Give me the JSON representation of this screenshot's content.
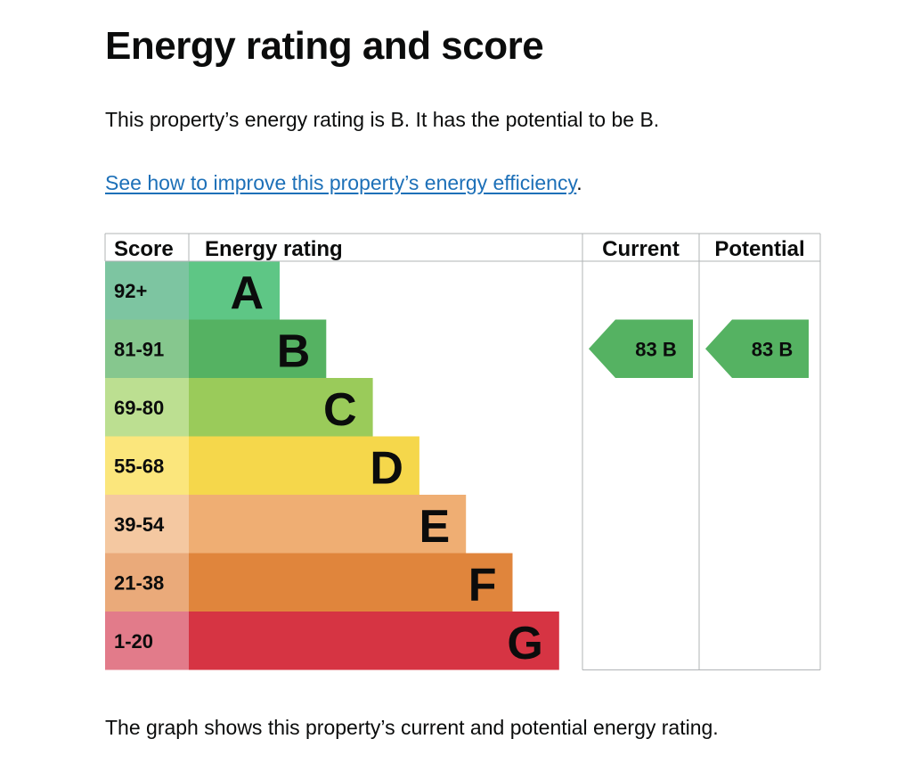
{
  "page": {
    "title": "Energy rating and score",
    "intro": "This property’s energy rating is B. It has the potential to be B.",
    "link_text": "See how to improve this property’s energy efficiency",
    "link_suffix": ".",
    "footer": "The graph shows this property’s current and potential energy rating."
  },
  "chart_data": {
    "type": "bar",
    "columns": [
      "Score",
      "Energy rating",
      "Current",
      "Potential"
    ],
    "bands": [
      {
        "letter": "A",
        "score_range": "92+",
        "color": "#5ec685",
        "score_color": "#7dc5a1"
      },
      {
        "letter": "B",
        "score_range": "81-91",
        "color": "#55b262",
        "score_color": "#86c78e"
      },
      {
        "letter": "C",
        "score_range": "69-80",
        "color": "#9acb5a",
        "score_color": "#bcdf91"
      },
      {
        "letter": "D",
        "score_range": "55-68",
        "color": "#f5d74b",
        "score_color": "#fbe67c"
      },
      {
        "letter": "E",
        "score_range": "39-54",
        "color": "#efae73",
        "score_color": "#f4c8a1"
      },
      {
        "letter": "F",
        "score_range": "21-38",
        "color": "#e0853c",
        "score_color": "#eaaa7a"
      },
      {
        "letter": "G",
        "score_range": "1-20",
        "color": "#d63443",
        "score_color": "#e27b8a"
      }
    ],
    "current": {
      "score": 83,
      "band": "B",
      "color": "#55b262"
    },
    "potential": {
      "score": 83,
      "band": "B",
      "color": "#55b262"
    }
  }
}
